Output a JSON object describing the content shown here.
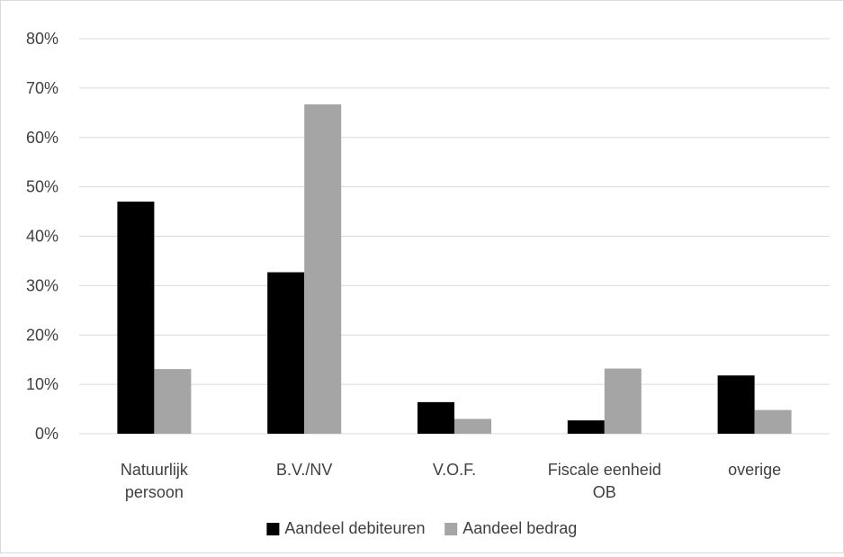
{
  "chart_data": {
    "type": "bar",
    "categories": [
      [
        "Natuurlijk",
        "persoon"
      ],
      [
        "B.V./NV"
      ],
      [
        "V.O.F."
      ],
      [
        "Fiscale eenheid",
        "OB"
      ],
      [
        "overige"
      ]
    ],
    "series": [
      {
        "name": "Aandeel debiteuren",
        "values": [
          47.0,
          32.7,
          6.4,
          2.7,
          11.8
        ]
      },
      {
        "name": "Aandeel bedrag",
        "values": [
          13.1,
          66.7,
          3.0,
          13.2,
          4.8
        ]
      }
    ],
    "yticks": [
      "0%",
      "10%",
      "20%",
      "30%",
      "40%",
      "50%",
      "60%",
      "70%",
      "80%"
    ],
    "ylim": [
      0,
      80
    ],
    "unit": "%",
    "grid": true,
    "legend_position": "bottom",
    "colors": {
      "series": [
        "#000000",
        "#a5a5a5"
      ],
      "grid": "#d9d9d9",
      "text": "#404040"
    }
  }
}
